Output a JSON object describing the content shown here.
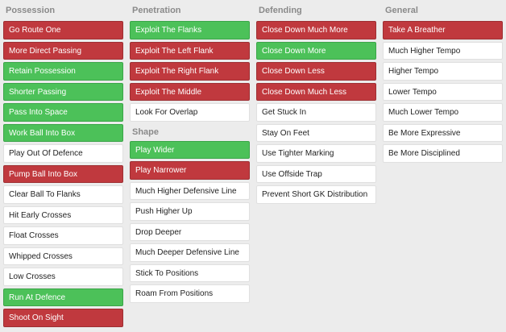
{
  "columns": [
    {
      "title": "Possession",
      "items": [
        {
          "label": "Go Route One",
          "state": "red"
        },
        {
          "label": "More Direct Passing",
          "state": "red"
        },
        {
          "label": "Retain Possession",
          "state": "green"
        },
        {
          "label": "Shorter Passing",
          "state": "green"
        },
        {
          "label": "Pass Into Space",
          "state": "green"
        },
        {
          "label": "Work Ball Into Box",
          "state": "green"
        },
        {
          "label": "Play Out Of Defence",
          "state": "white"
        },
        {
          "label": "Pump Ball Into Box",
          "state": "red"
        },
        {
          "label": "Clear Ball To Flanks",
          "state": "white"
        },
        {
          "label": "Hit Early Crosses",
          "state": "white"
        },
        {
          "label": "Float Crosses",
          "state": "white"
        },
        {
          "label": "Whipped Crosses",
          "state": "white"
        },
        {
          "label": "Low Crosses",
          "state": "white"
        },
        {
          "label": "Run At Defence",
          "state": "green"
        },
        {
          "label": "Shoot On Sight",
          "state": "red"
        }
      ]
    },
    {
      "title": "Penetration",
      "items": [
        {
          "label": "Exploit The Flanks",
          "state": "green"
        },
        {
          "label": "Exploit The Left Flank",
          "state": "red"
        },
        {
          "label": "Exploit The Right Flank",
          "state": "red"
        },
        {
          "label": "Exploit The Middle",
          "state": "red"
        },
        {
          "label": "Look For Overlap",
          "state": "white"
        }
      ],
      "sub_title": "Shape",
      "sub_items": [
        {
          "label": "Play Wider",
          "state": "green"
        },
        {
          "label": "Play Narrower",
          "state": "red"
        },
        {
          "label": "Much Higher Defensive Line",
          "state": "white"
        },
        {
          "label": "Push Higher Up",
          "state": "white"
        },
        {
          "label": "Drop Deeper",
          "state": "white"
        },
        {
          "label": "Much Deeper Defensive Line",
          "state": "white"
        },
        {
          "label": "Stick To Positions",
          "state": "white"
        },
        {
          "label": "Roam From Positions",
          "state": "white"
        }
      ]
    },
    {
      "title": "Defending",
      "items": [
        {
          "label": "Close Down Much More",
          "state": "red"
        },
        {
          "label": "Close Down More",
          "state": "green"
        },
        {
          "label": "Close Down Less",
          "state": "red"
        },
        {
          "label": "Close Down Much Less",
          "state": "red"
        },
        {
          "label": "Get Stuck In",
          "state": "white"
        },
        {
          "label": "Stay On Feet",
          "state": "white"
        },
        {
          "label": "Use Tighter Marking",
          "state": "white"
        },
        {
          "label": "Use Offside Trap",
          "state": "white"
        },
        {
          "label": "Prevent Short GK Distribution",
          "state": "white"
        }
      ]
    },
    {
      "title": "General",
      "items": [
        {
          "label": "Take A Breather",
          "state": "red"
        },
        {
          "label": "Much Higher Tempo",
          "state": "white"
        },
        {
          "label": "Higher Tempo",
          "state": "white"
        },
        {
          "label": "Lower Tempo",
          "state": "white"
        },
        {
          "label": "Much Lower Tempo",
          "state": "white"
        },
        {
          "label": "Be More Expressive",
          "state": "white"
        },
        {
          "label": "Be More Disciplined",
          "state": "white"
        }
      ]
    }
  ]
}
